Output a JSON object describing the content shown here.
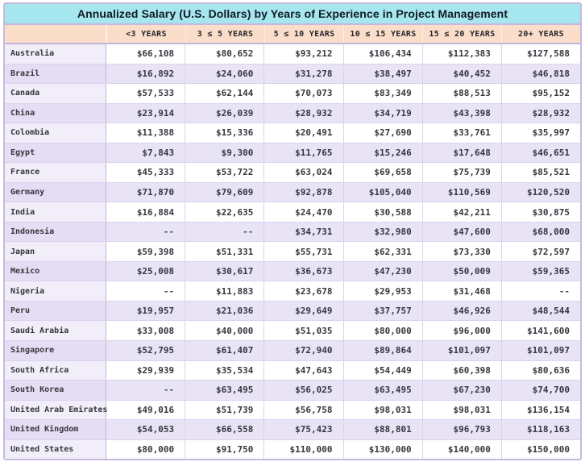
{
  "colors": {
    "title_bar_bg": "#a6e6ee",
    "header_row_bg": "#fbdeca",
    "row_stripe_bg": "#e9e3f6",
    "row_plain_bg": "#ffffff",
    "country_col_plain_bg": "#f1eef9",
    "country_col_stripe_bg": "#e4ddf3",
    "outer_border": "#c7b8e0",
    "grid_line": "#dbd2ee",
    "country_divider": "#c3b2de",
    "title_text": "#121b26",
    "cell_text": "#36363e"
  },
  "chart_data": {
    "type": "table",
    "title": "Annualized Salary (U.S. Dollars) by Years of Experience in Project Management",
    "columns": [
      "<3 YEARS",
      "3 ≤ 5 YEARS",
      "5 ≤ 10 YEARS",
      "10 ≤ 15 YEARS",
      "15 ≤ 20 YEARS",
      "20+ YEARS"
    ],
    "missing_value_marker": "--",
    "rows": [
      {
        "country": "Australia",
        "values": [
          "$66,108",
          "$80,652",
          "$93,212",
          "$106,434",
          "$112,383",
          "$127,588"
        ]
      },
      {
        "country": "Brazil",
        "values": [
          "$16,892",
          "$24,060",
          "$31,278",
          "$38,497",
          "$40,452",
          "$46,818"
        ]
      },
      {
        "country": "Canada",
        "values": [
          "$57,533",
          "$62,144",
          "$70,073",
          "$83,349",
          "$88,513",
          "$95,152"
        ]
      },
      {
        "country": "China",
        "values": [
          "$23,914",
          "$26,039",
          "$28,932",
          "$34,719",
          "$43,398",
          "$28,932"
        ]
      },
      {
        "country": "Colombia",
        "values": [
          "$11,388",
          "$15,336",
          "$20,491",
          "$27,690",
          "$33,761",
          "$35,997"
        ]
      },
      {
        "country": "Egypt",
        "values": [
          "$7,843",
          "$9,300",
          "$11,765",
          "$15,246",
          "$17,648",
          "$46,651"
        ]
      },
      {
        "country": "France",
        "values": [
          "$45,333",
          "$53,722",
          "$63,024",
          "$69,658",
          "$75,739",
          "$85,521"
        ]
      },
      {
        "country": "Germany",
        "values": [
          "$71,870",
          "$79,609",
          "$92,878",
          "$105,040",
          "$110,569",
          "$120,520"
        ]
      },
      {
        "country": "India",
        "values": [
          "$16,884",
          "$22,635",
          "$24,470",
          "$30,588",
          "$42,211",
          "$30,875"
        ]
      },
      {
        "country": "Indonesia",
        "values": [
          "--",
          "--",
          "$34,731",
          "$32,980",
          "$47,600",
          "$68,000"
        ]
      },
      {
        "country": "Japan",
        "values": [
          "$59,398",
          "$51,331",
          "$55,731",
          "$62,331",
          "$73,330",
          "$72,597"
        ]
      },
      {
        "country": "Mexico",
        "values": [
          "$25,008",
          "$30,617",
          "$36,673",
          "$47,230",
          "$50,009",
          "$59,365"
        ]
      },
      {
        "country": "Nigeria",
        "values": [
          "--",
          "$11,883",
          "$23,678",
          "$29,953",
          "$31,468",
          "--"
        ]
      },
      {
        "country": "Peru",
        "values": [
          "$19,957",
          "$21,036",
          "$29,649",
          "$37,757",
          "$46,926",
          "$48,544"
        ]
      },
      {
        "country": "Saudi Arabia",
        "values": [
          "$33,008",
          "$40,000",
          "$51,035",
          "$80,000",
          "$96,000",
          "$141,600"
        ]
      },
      {
        "country": "Singapore",
        "values": [
          "$52,795",
          "$61,407",
          "$72,940",
          "$89,864",
          "$101,097",
          "$101,097"
        ]
      },
      {
        "country": "South Africa",
        "values": [
          "$29,939",
          "$35,534",
          "$47,643",
          "$54,449",
          "$60,398",
          "$80,636"
        ]
      },
      {
        "country": "South Korea",
        "values": [
          "--",
          "$63,495",
          "$56,025",
          "$63,495",
          "$67,230",
          "$74,700"
        ]
      },
      {
        "country": "United Arab Emirates",
        "values": [
          "$49,016",
          "$51,739",
          "$56,758",
          "$98,031",
          "$98,031",
          "$136,154"
        ]
      },
      {
        "country": "United Kingdom",
        "values": [
          "$54,053",
          "$66,558",
          "$75,423",
          "$88,801",
          "$96,793",
          "$118,163"
        ]
      },
      {
        "country": "United States",
        "values": [
          "$80,000",
          "$91,750",
          "$110,000",
          "$130,000",
          "$140,000",
          "$150,000"
        ]
      }
    ]
  }
}
